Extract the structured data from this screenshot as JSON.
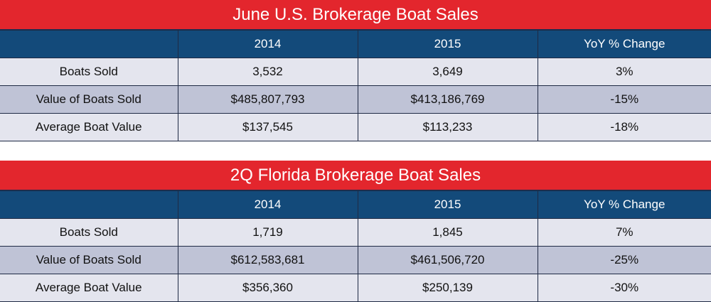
{
  "chart_data": [
    {
      "type": "table",
      "title": "June U.S. Brokerage Boat Sales",
      "columns": [
        "",
        "2014",
        "2015",
        "YoY % Change"
      ],
      "rows": [
        [
          "Boats Sold",
          "3,532",
          "3,649",
          "3%"
        ],
        [
          "Value of Boats Sold",
          "$485,807,793",
          "$413,186,769",
          "-15%"
        ],
        [
          "Average Boat Value",
          "$137,545",
          "$113,233",
          "-18%"
        ]
      ]
    },
    {
      "type": "table",
      "title": "2Q Florida Brokerage Boat Sales",
      "columns": [
        "",
        "2014",
        "2015",
        "YoY % Change"
      ],
      "rows": [
        [
          "Boats Sold",
          "1,719",
          "1,845",
          "7%"
        ],
        [
          "Value of Boats Sold",
          "$612,583,681",
          "$461,506,720",
          "-25%"
        ],
        [
          "Average Boat Value",
          "$356,360",
          "$250,139",
          "-30%"
        ]
      ]
    }
  ],
  "colors": {
    "title_bar": "#e3262d",
    "header_row": "#134a7a",
    "row_light": "#e4e5ee",
    "row_dark": "#bfc3d6"
  }
}
